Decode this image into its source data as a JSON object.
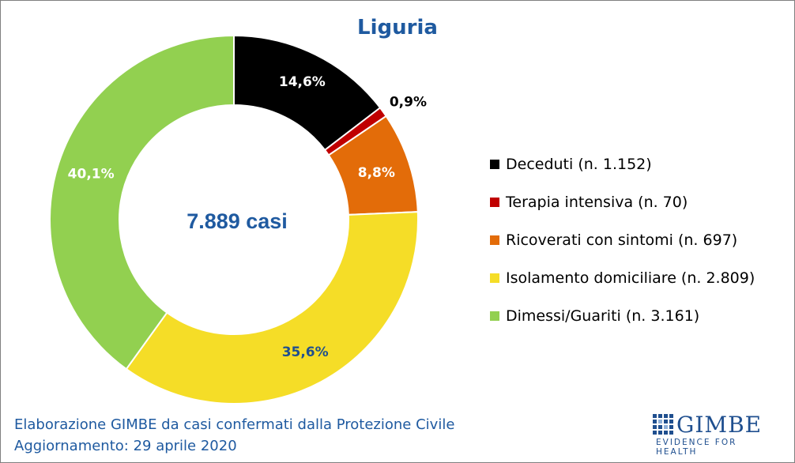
{
  "title": "Liguria",
  "center_label": "7.889 casi",
  "footer": {
    "line1": "Elaborazione GIMBE da casi confermati dalla Protezione Civile",
    "line2": "Aggiornamento: 29 aprile 2020"
  },
  "logo": {
    "name": "GIMBE",
    "tagline": "EVIDENCE FOR HEALTH",
    "icon": "gimbe-grid-icon"
  },
  "chart_data": {
    "type": "pie",
    "title": "Liguria",
    "donut": true,
    "center_text": "7.889 casi",
    "legend_position": "right",
    "slices": [
      {
        "label": "Deceduti (n. 1.152)",
        "value": 1152,
        "percent_label": "14,6%",
        "color": "#000000",
        "label_color": "#ffffff"
      },
      {
        "label": "Terapia intensiva (n. 70)",
        "value": 70,
        "percent_label": "0,9%",
        "color": "#c00000",
        "label_color": "#000000"
      },
      {
        "label": "Ricoverati con sintomi (n. 697)",
        "value": 697,
        "percent_label": "8,8%",
        "color": "#e36c09",
        "label_color": "#ffffff"
      },
      {
        "label": "Isolamento domiciliare (n. 2.809)",
        "value": 2809,
        "percent_label": "35,6%",
        "color": "#f5dd27",
        "label_color": "#1f4f8f"
      },
      {
        "label": "Dimessi/Guariti (n. 3.161)",
        "value": 3161,
        "percent_label": "40,1%",
        "color": "#92d050",
        "label_color": "#ffffff"
      }
    ]
  }
}
